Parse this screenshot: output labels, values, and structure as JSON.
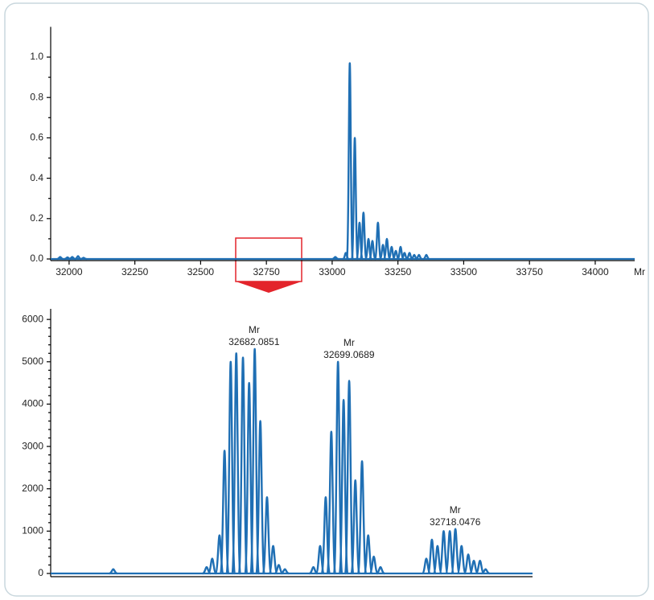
{
  "chart_data": [
    {
      "type": "spectrum",
      "color": "#1f6fb4",
      "x_label": "Mr",
      "xlim": [
        31930,
        34150
      ],
      "xticks": [
        32000,
        32250,
        32500,
        32750,
        33000,
        33250,
        33500,
        33750,
        34000
      ],
      "ylim": [
        0,
        1.15
      ],
      "yticks": [
        {
          "value": 0,
          "label": "0.0"
        },
        0.2,
        0.4,
        0.6,
        0.8,
        {
          "value": 1,
          "label": "1.0"
        }
      ],
      "x": [
        31966,
        31994,
        32012,
        32034,
        32055,
        33012,
        33052,
        33067,
        33086,
        33104,
        33119,
        33138,
        33153,
        33174,
        33193,
        33208,
        33226,
        33242,
        33260,
        33275,
        33294,
        33312,
        33330,
        33358
      ],
      "values": [
        0.01,
        0.008,
        0.01,
        0.014,
        0.006,
        0.01,
        0.03,
        0.97,
        0.6,
        0.18,
        0.23,
        0.1,
        0.09,
        0.18,
        0.07,
        0.1,
        0.06,
        0.04,
        0.06,
        0.03,
        0.03,
        0.02,
        0.02,
        0.02
      ]
    },
    {
      "type": "spectrum",
      "color": "#1f6fb4",
      "xlim": [
        32645.7,
        32731.9
      ],
      "ylim": [
        0,
        6250
      ],
      "yticks": [
        0,
        1000,
        2000,
        3000,
        4000,
        5000,
        6000
      ],
      "x": [
        32656.9,
        32673.6,
        32674.6,
        32675.9,
        32676.8,
        32677.9,
        32678.9,
        32680.1,
        32681.2,
        32682.2,
        32683.2,
        32684.4,
        32685.5,
        32686.5,
        32687.6,
        32692.7,
        32693.9,
        32694.9,
        32695.9,
        32697.1,
        32698.1,
        32699.1,
        32700.2,
        32701.4,
        32702.5,
        32703.5,
        32704.7,
        32712.9,
        32713.9,
        32714.9,
        32716.0,
        32717.1,
        32718.1,
        32719.2,
        32720.4,
        32721.4,
        32722.5,
        32723.5
      ],
      "values": [
        100,
        150,
        350,
        900,
        2900,
        5000,
        5200,
        5100,
        4500,
        5300,
        3600,
        1800,
        650,
        200,
        100,
        150,
        650,
        1800,
        3350,
        5000,
        4100,
        4550,
        2200,
        2650,
        900,
        400,
        150,
        350,
        800,
        650,
        1000,
        1000,
        1050,
        650,
        450,
        300,
        300,
        100
      ],
      "annotations": [
        {
          "text": "Mr",
          "value": 32682.0851
        },
        {
          "text": "Mr",
          "value": 32699.0689
        },
        {
          "text": "Mr",
          "value": 32718.0476
        }
      ]
    }
  ]
}
